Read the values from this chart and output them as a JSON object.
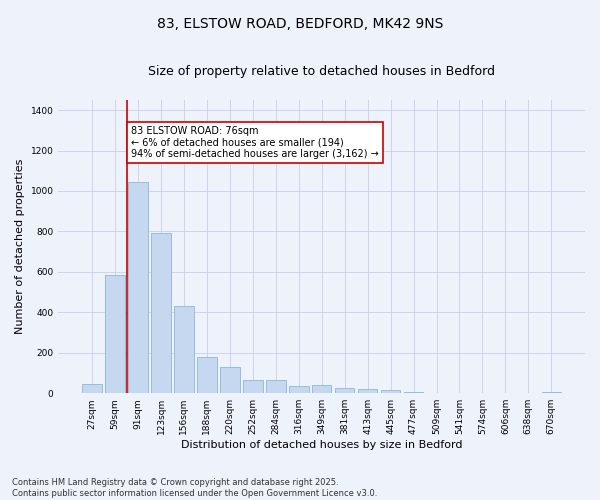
{
  "title1": "83, ELSTOW ROAD, BEDFORD, MK42 9NS",
  "title2": "Size of property relative to detached houses in Bedford",
  "xlabel": "Distribution of detached houses by size in Bedford",
  "ylabel": "Number of detached properties",
  "categories": [
    "27sqm",
    "59sqm",
    "91sqm",
    "123sqm",
    "156sqm",
    "188sqm",
    "220sqm",
    "252sqm",
    "284sqm",
    "316sqm",
    "349sqm",
    "381sqm",
    "413sqm",
    "445sqm",
    "477sqm",
    "509sqm",
    "541sqm",
    "574sqm",
    "606sqm",
    "638sqm",
    "670sqm"
  ],
  "values": [
    45,
    585,
    1045,
    790,
    430,
    178,
    128,
    65,
    65,
    38,
    42,
    25,
    22,
    15,
    8,
    0,
    0,
    0,
    0,
    0,
    8
  ],
  "bar_color": "#c5d8f0",
  "bar_edge_color": "#7aafd4",
  "vline_x": 1.5,
  "vline_color": "#cc0000",
  "annotation_text": "83 ELSTOW ROAD: 76sqm\n← 6% of detached houses are smaller (194)\n94% of semi-detached houses are larger (3,162) →",
  "annotation_box_color": "#ffffff",
  "annotation_box_edge": "#cc0000",
  "footnote1": "Contains HM Land Registry data © Crown copyright and database right 2025.",
  "footnote2": "Contains public sector information licensed under the Open Government Licence v3.0.",
  "ylim": [
    0,
    1450
  ],
  "bg_color": "#eef2fb",
  "grid_color": "#c8d0e8",
  "title_fontsize": 10,
  "subtitle_fontsize": 9,
  "tick_fontsize": 6.5,
  "ylabel_fontsize": 8,
  "xlabel_fontsize": 8,
  "annot_fontsize": 7,
  "footnote_fontsize": 6
}
